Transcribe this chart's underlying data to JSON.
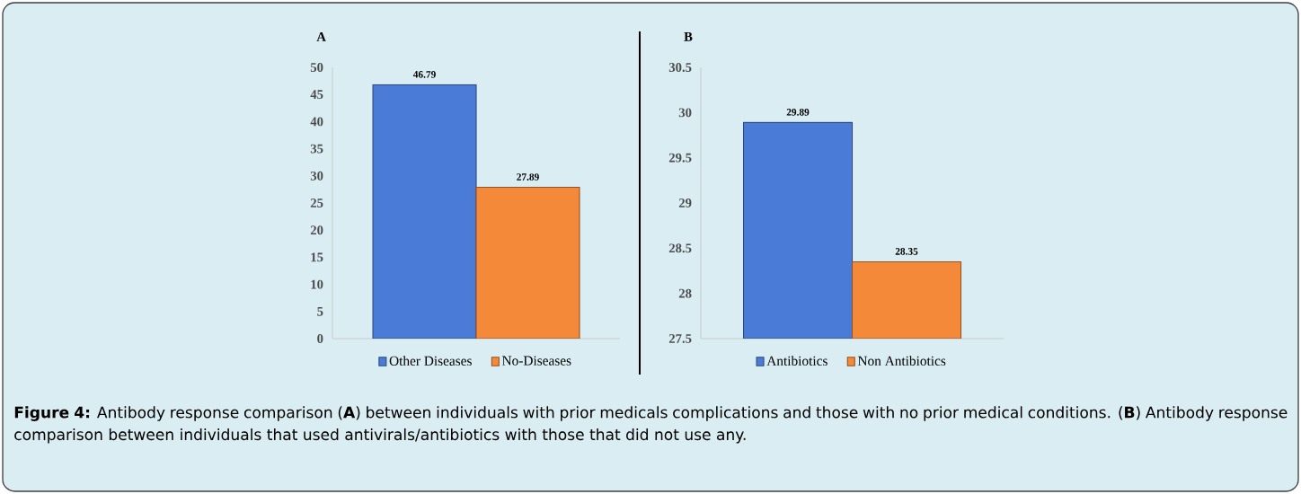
{
  "chart_data": [
    {
      "type": "bar",
      "title": "A",
      "categories": [
        null
      ],
      "series": [
        {
          "name": "Other Diseases",
          "color": "#4a7bd6",
          "values": [
            46.79
          ]
        },
        {
          "name": "No-Diseases",
          "color": "#f5893a",
          "values": [
            27.89
          ]
        }
      ],
      "ylim": [
        0,
        50
      ],
      "yticks": [
        0,
        5,
        10,
        15,
        20,
        25,
        30,
        35,
        40,
        45,
        50
      ],
      "data_labels": true,
      "legend": "bottom",
      "grid": false,
      "annotations": [
        "**Figure 4:** Antibody response comparison (**A**) between individuals with prior medicals complications and those with no prior medical conditions. (**B**) Antibody response comparison between individuals that used antivirals/antibiotics with those that did not use any."
      ]
    },
    {
      "type": "bar",
      "title": "B",
      "categories": [
        null
      ],
      "series": [
        {
          "name": "Antibiotics",
          "color": "#4a7bd6",
          "values": [
            29.89
          ]
        },
        {
          "name": "Non Antibiotics",
          "color": "#f5893a",
          "values": [
            28.35
          ]
        }
      ],
      "ylim": [
        27.5,
        30.5
      ],
      "yticks": [
        27.5,
        28,
        28.5,
        29,
        29.5,
        30,
        30.5
      ],
      "data_labels": true,
      "legend": "bottom",
      "grid": false
    }
  ]
}
